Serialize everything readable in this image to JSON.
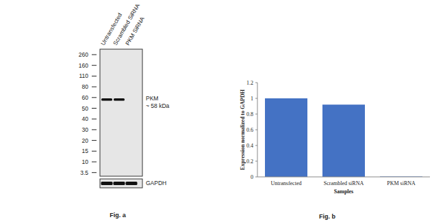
{
  "blot": {
    "lanes": [
      "Untransfected",
      "Scrambled SiRNA",
      "PKM SiRNA"
    ],
    "ladder_kda": [
      260,
      160,
      110,
      80,
      60,
      50,
      40,
      30,
      20,
      15,
      10,
      3.5
    ],
    "band": {
      "name": "PKM",
      "label": "~ 58 kDa",
      "kda": 58,
      "present": [
        true,
        true,
        false
      ]
    },
    "loading_control": "GAPDH",
    "caption": "Fig. a"
  },
  "chart_data": {
    "type": "bar",
    "categories": [
      "Untransfected",
      "Scrambled siRNA",
      "PKM siRNA"
    ],
    "values": [
      1.0,
      0.92,
      0.005
    ],
    "color": "#4472c4",
    "ylim": [
      0,
      1.2
    ],
    "yticks": [
      0,
      0.2,
      0.4,
      0.6,
      0.8,
      1,
      1.2
    ],
    "grid": false,
    "xlabel": "Samples",
    "ylabel": "Expression normalized to GAPDH",
    "caption": "Fig. b"
  }
}
